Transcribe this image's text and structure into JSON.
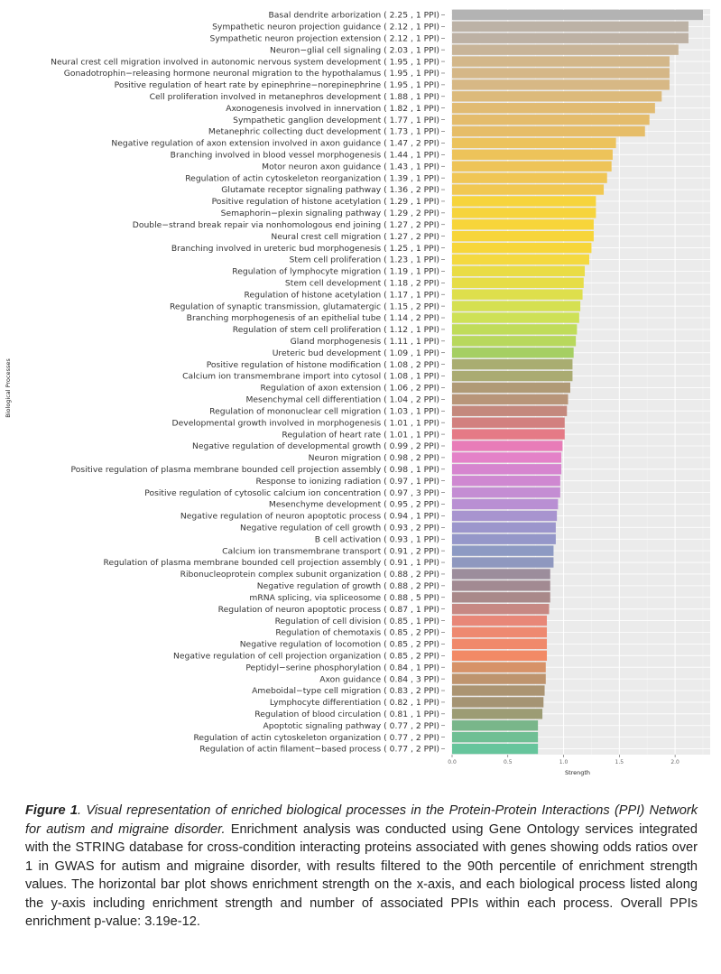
{
  "chart_data": {
    "type": "bar",
    "orientation": "horizontal",
    "xlabel": "Strength",
    "ylabel": "Biological Processes",
    "xlim": [
      0,
      2.3
    ],
    "xticks": [
      0.0,
      0.5,
      1.0,
      1.5,
      2.0
    ],
    "xtick_labels": [
      "0.0",
      "0.5",
      "1.0",
      "1.5",
      "2.0"
    ],
    "grid": true,
    "legend": "none",
    "categories": [
      "Basal dendrite arborization ( 2.25 ,  1  PPI)",
      "Sympathetic neuron projection guidance ( 2.12 ,  1  PPI)",
      "Sympathetic neuron projection extension ( 2.12 ,  1  PPI)",
      "Neuron−glial cell signaling ( 2.03 ,  1  PPI)",
      "Neural crest cell migration involved in autonomic nervous system development ( 1.95 ,  1  PPI)",
      "Gonadotrophin−releasing hormone neuronal migration to the hypothalamus ( 1.95 ,  1  PPI)",
      "Positive regulation of heart rate by epinephrine−norepinephrine ( 1.95 ,  1  PPI)",
      "Cell proliferation involved in metanephros development ( 1.88 ,  1  PPI)",
      "Axonogenesis involved in innervation ( 1.82 ,  1  PPI)",
      "Sympathetic ganglion development ( 1.77 ,  1  PPI)",
      "Metanephric collecting duct development ( 1.73 ,  1  PPI)",
      "Negative regulation of axon extension involved in axon guidance ( 1.47 ,  2  PPI)",
      "Branching involved in blood vessel morphogenesis ( 1.44 ,  1  PPI)",
      "Motor neuron axon guidance ( 1.43 ,  1  PPI)",
      "Regulation of actin cytoskeleton reorganization ( 1.39 ,  1  PPI)",
      "Glutamate receptor signaling pathway ( 1.36 ,  2  PPI)",
      "Positive regulation of histone acetylation ( 1.29 ,  1  PPI)",
      "Semaphorin−plexin signaling pathway ( 1.29 ,  2  PPI)",
      "Double−strand break repair via nonhomologous end joining ( 1.27 ,  2  PPI)",
      "Neural crest cell migration ( 1.27 ,  2  PPI)",
      "Branching involved in ureteric bud morphogenesis ( 1.25 ,  1  PPI)",
      "Stem cell proliferation ( 1.23 ,  1  PPI)",
      "Regulation of lymphocyte migration ( 1.19 ,  1  PPI)",
      "Stem cell development ( 1.18 ,  2  PPI)",
      "Regulation of histone acetylation ( 1.17 ,  1  PPI)",
      "Regulation of synaptic transmission, glutamatergic ( 1.15 ,  2  PPI)",
      "Branching morphogenesis of an epithelial tube ( 1.14 ,  2  PPI)",
      "Regulation of stem cell proliferation ( 1.12 ,  1  PPI)",
      "Gland morphogenesis ( 1.11 ,  1  PPI)",
      "Ureteric bud development ( 1.09 ,  1  PPI)",
      "Positive regulation of histone modification ( 1.08 ,  2  PPI)",
      "Calcium ion transmembrane import into cytosol ( 1.08 ,  1  PPI)",
      "Regulation of axon extension ( 1.06 ,  2  PPI)",
      "Mesenchymal cell differentiation ( 1.04 ,  2  PPI)",
      "Regulation of mononuclear cell migration ( 1.03 ,  1  PPI)",
      "Developmental growth involved in morphogenesis ( 1.01 ,  1  PPI)",
      "Regulation of heart rate ( 1.01 ,  1  PPI)",
      "Negative regulation of developmental growth ( 0.99 ,  2  PPI)",
      "Neuron migration ( 0.98 ,  2  PPI)",
      "Positive regulation of plasma membrane bounded cell projection assembly ( 0.98 ,  1  PPI)",
      "Response to ionizing radiation ( 0.97 ,  1  PPI)",
      "Positive regulation of cytosolic calcium ion concentration ( 0.97 ,  3  PPI)",
      "Mesenchyme development ( 0.95 ,  2  PPI)",
      "Negative regulation of neuron apoptotic process ( 0.94 ,  1  PPI)",
      "Negative regulation of cell growth ( 0.93 ,  2  PPI)",
      "B cell activation ( 0.93 ,  1  PPI)",
      "Calcium ion transmembrane transport ( 0.91 ,  2  PPI)",
      "Regulation of plasma membrane bounded cell projection assembly ( 0.91 ,  1  PPI)",
      "Ribonucleoprotein complex subunit organization ( 0.88 ,  2  PPI)",
      "Negative regulation of growth ( 0.88 ,  2  PPI)",
      "mRNA splicing, via spliceosome ( 0.88 ,  5  PPI)",
      "Regulation of neuron apoptotic process ( 0.87 ,  1  PPI)",
      "Regulation of cell division ( 0.85 ,  1  PPI)",
      "Regulation of chemotaxis ( 0.85 ,  2  PPI)",
      "Negative regulation of locomotion ( 0.85 ,  2  PPI)",
      "Negative regulation of cell projection organization ( 0.85 ,  2  PPI)",
      "Peptidyl−serine phosphorylation ( 0.84 ,  1  PPI)",
      "Axon guidance ( 0.84 ,  3  PPI)",
      "Ameboidal−type cell migration ( 0.83 ,  2  PPI)",
      "Lymphocyte differentiation ( 0.82 ,  1  PPI)",
      "Regulation of blood circulation ( 0.81 ,  1  PPI)",
      "Apoptotic signaling pathway ( 0.77 ,  2  PPI)",
      "Regulation of actin cytoskeleton organization ( 0.77 ,  2  PPI)",
      "Regulation of actin filament−based process ( 0.77 ,  2  PPI)"
    ],
    "values": [
      2.25,
      2.12,
      2.12,
      2.03,
      1.95,
      1.95,
      1.95,
      1.88,
      1.82,
      1.77,
      1.73,
      1.47,
      1.44,
      1.43,
      1.39,
      1.36,
      1.29,
      1.29,
      1.27,
      1.27,
      1.25,
      1.23,
      1.19,
      1.18,
      1.17,
      1.15,
      1.14,
      1.12,
      1.11,
      1.09,
      1.08,
      1.08,
      1.06,
      1.04,
      1.03,
      1.01,
      1.01,
      0.99,
      0.98,
      0.98,
      0.97,
      0.97,
      0.95,
      0.94,
      0.93,
      0.93,
      0.91,
      0.91,
      0.88,
      0.88,
      0.88,
      0.87,
      0.85,
      0.85,
      0.85,
      0.85,
      0.84,
      0.84,
      0.83,
      0.82,
      0.81,
      0.77,
      0.77,
      0.77
    ],
    "colors": [
      "#b3b3b3",
      "#bcb2a6",
      "#bdb1a4",
      "#c8b498",
      "#d3b78a",
      "#d5b787",
      "#d7b885",
      "#dcba7b",
      "#e1bb72",
      "#e4bc6c",
      "#e6bd68",
      "#ecc35c",
      "#edc35a",
      "#eec458",
      "#f0c655",
      "#f1c852",
      "#f6d43c",
      "#f6d43c",
      "#f7d53a",
      "#f7d53a",
      "#f7d63a",
      "#f4d940",
      "#e9dc45",
      "#e6dd47",
      "#dedf4c",
      "#d5e051",
      "#cee156",
      "#c0dc5a",
      "#b8d85d",
      "#a5cf63",
      "#a9ad71",
      "#aaab72",
      "#b09a76",
      "#b89579",
      "#c4887d",
      "#d2807f",
      "#e57a86",
      "#e87cb8",
      "#e482c8",
      "#d685cf",
      "#cf88d1",
      "#c48dd3",
      "#b98fd3",
      "#a894cf",
      "#9c96cc",
      "#9597c9",
      "#8d9ac3",
      "#8f98bf",
      "#9c8d9c",
      "#a28a92",
      "#a9898a",
      "#c78883",
      "#e88778",
      "#ee8970",
      "#f0896b",
      "#f28a66",
      "#d79268",
      "#be946e",
      "#ab9472",
      "#a59474",
      "#9c9c74",
      "#79b68a",
      "#6fbf94",
      "#66c59c"
    ]
  },
  "caption": {
    "label": "Figure 1",
    "title": ". Visual representation of enriched biological processes in the Protein-Protein Interactions (PPI) Network for autism and migraine disorder.",
    "body": " Enrichment analysis was conducted using Gene Ontology services integrated with the STRING database for cross-condition interacting proteins associated with genes showing odds ratios over 1 in GWAS for autism and migraine disorder, with results filtered to the 90th percentile of enrichment strength values. The horizontal bar plot shows enrichment strength on the x-axis, and each biological process listed along the y-axis including enrichment strength and number of associated PPIs within each process. Overall PPIs enrichment p-value: 3.19e-12."
  }
}
